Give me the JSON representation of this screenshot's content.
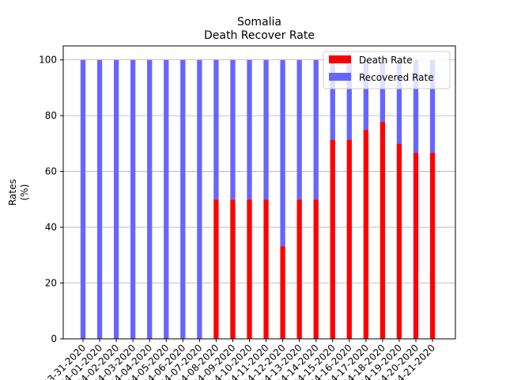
{
  "chart_data": {
    "type": "bar",
    "stacked": true,
    "title": "Somalia",
    "subtitle": "Death Recover Rate",
    "xlabel": "",
    "ylabel": "Rates",
    "ylabel_unit": "(%)",
    "ylim": [
      0,
      105
    ],
    "yticks": [
      "0",
      "20",
      "40",
      "60",
      "80",
      "100"
    ],
    "grid": "y",
    "legend_position": "top-right",
    "categories": [
      "03-31-2020",
      "04-01-2020",
      "04-02-2020",
      "04-03-2020",
      "04-04-2020",
      "04-05-2020",
      "04-06-2020",
      "04-07-2020",
      "04-08-2020",
      "04-09-2020",
      "04-10-2020",
      "04-11-2020",
      "04-12-2020",
      "04-13-2020",
      "04-14-2020",
      "04-15-2020",
      "04-16-2020",
      "04-17-2020",
      "04-18-2020",
      "04-19-2020",
      "04-20-2020",
      "04-21-2020"
    ],
    "series": [
      {
        "name": "Death Rate",
        "color": "#ff0000",
        "values": [
          0,
          0,
          0,
          0,
          0,
          0,
          0,
          0,
          50,
          50,
          50,
          50,
          33.3,
          50,
          50,
          71.4,
          71.4,
          75,
          77.8,
          70,
          66.7,
          66.7
        ]
      },
      {
        "name": "Recovered Rate",
        "color": "#6666ff",
        "values": [
          100,
          100,
          100,
          100,
          100,
          100,
          100,
          100,
          50,
          50,
          50,
          50,
          66.7,
          50,
          50,
          28.6,
          28.6,
          25,
          22.2,
          30,
          33.3,
          33.3
        ]
      }
    ]
  }
}
